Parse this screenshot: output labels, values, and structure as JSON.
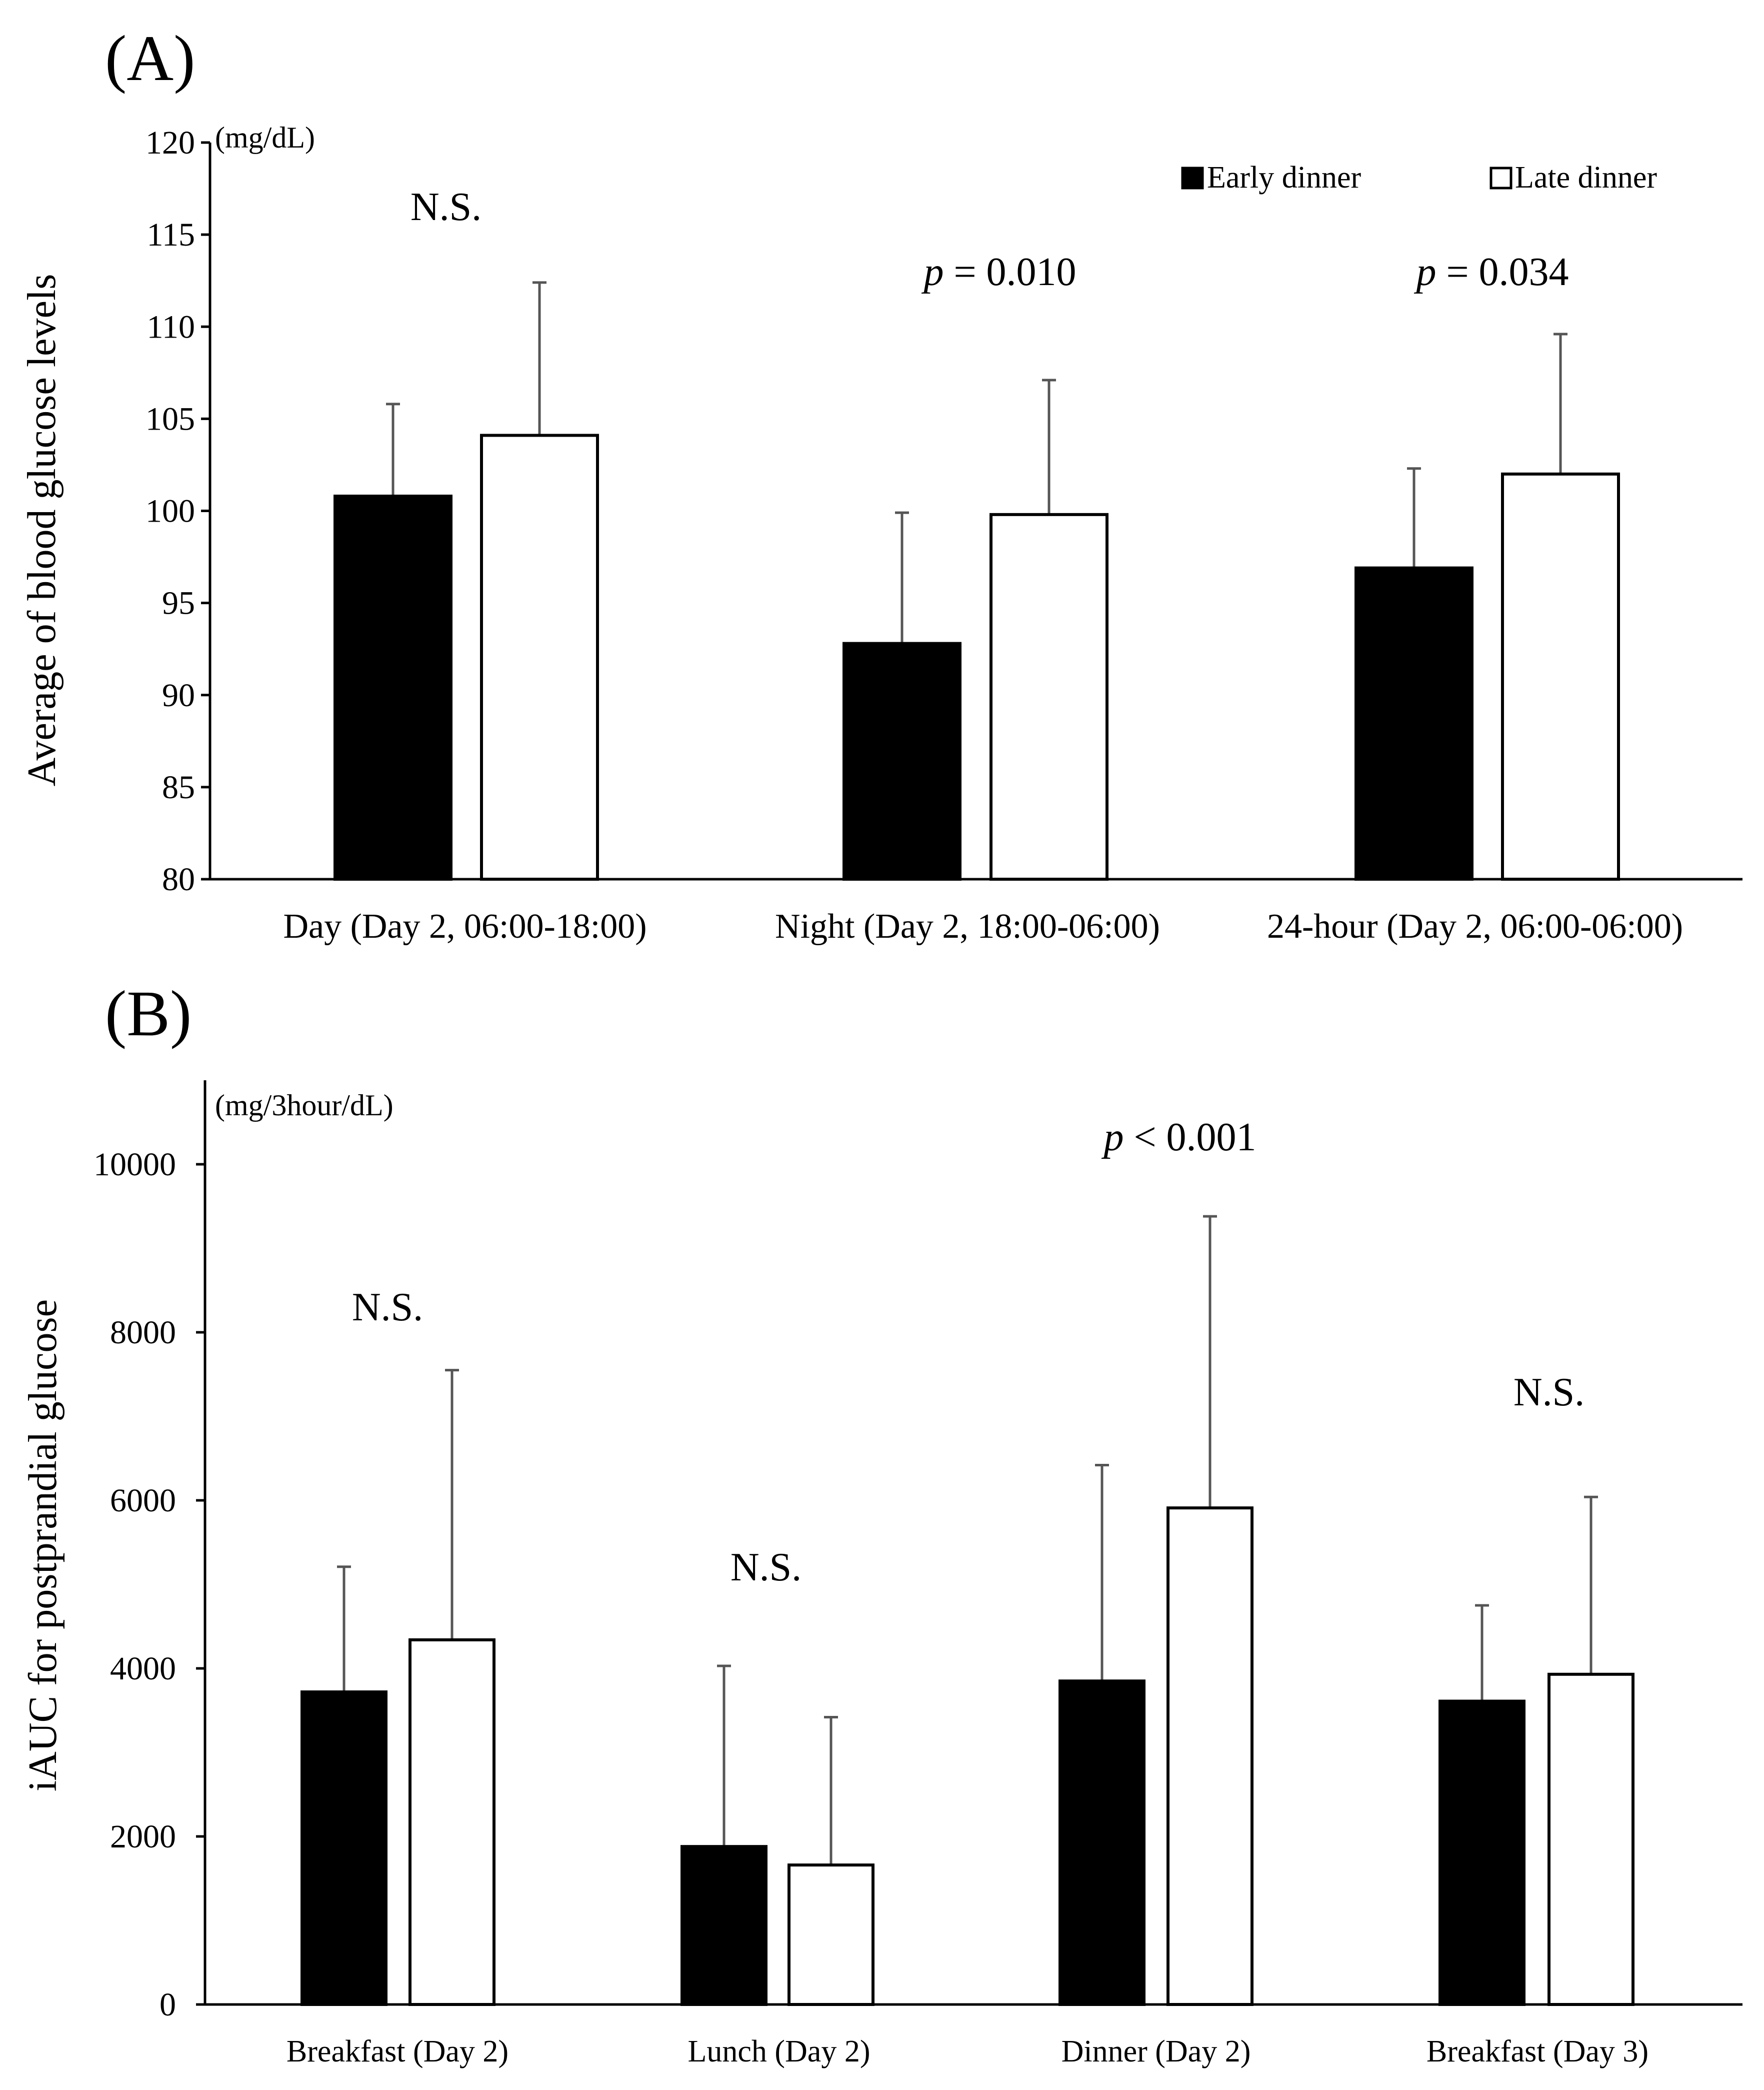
{
  "legend": {
    "early_label": "Early dinner",
    "late_label": "Late dinner",
    "early_color": "#000000",
    "late_color": "#ffffff"
  },
  "chart_data": [
    {
      "panel": "(A)",
      "type": "bar",
      "ylabel": "Average of blood glucose levels",
      "unit": "(mg/dL)",
      "ylim": [
        80,
        120
      ],
      "yticks": [
        80,
        85,
        90,
        95,
        100,
        105,
        110,
        115,
        120
      ],
      "categories": [
        "Day (Day 2, 06:00-18:00)",
        "Night (Day 2, 18:00-06:00)",
        "24-hour (Day 2, 06:00-06:00)"
      ],
      "series": [
        {
          "name": "Early dinner",
          "values": [
            100.8,
            92.8,
            96.9
          ],
          "errors": [
            5.0,
            7.1,
            5.4
          ]
        },
        {
          "name": "Late dinner",
          "values": [
            104.1,
            99.8,
            102.0
          ],
          "errors": [
            8.3,
            7.3,
            7.6
          ]
        }
      ],
      "annotations": [
        {
          "prefix": "",
          "text": "N.S."
        },
        {
          "prefix": "p",
          "text": " = 0.010"
        },
        {
          "prefix": "p",
          "text": " = 0.034"
        }
      ]
    },
    {
      "panel": "(B)",
      "type": "bar",
      "ylabel": "iAUC for postprandial glucose",
      "unit": "(mg/3hour/dL)",
      "ylim": [
        0,
        11000
      ],
      "yticks": [
        0,
        2000,
        4000,
        6000,
        8000,
        10000
      ],
      "categories": [
        "Breakfast (Day 2)",
        "Lunch (Day 2)",
        "Dinner (Day 2)",
        "Breakfast (Day 3)"
      ],
      "series": [
        {
          "name": "Early dinner",
          "values": [
            3720,
            1880,
            3850,
            3610
          ],
          "errors": [
            1490,
            2150,
            2570,
            1140
          ]
        },
        {
          "name": "Late dinner",
          "values": [
            4340,
            1660,
            5910,
            3930
          ],
          "errors": [
            3210,
            1760,
            3470,
            2110
          ]
        }
      ],
      "annotations": [
        {
          "prefix": "",
          "text": "N.S."
        },
        {
          "prefix": "",
          "text": "N.S."
        },
        {
          "prefix": "p",
          "text": " < 0.001"
        },
        {
          "prefix": "",
          "text": "N.S."
        }
      ]
    }
  ]
}
